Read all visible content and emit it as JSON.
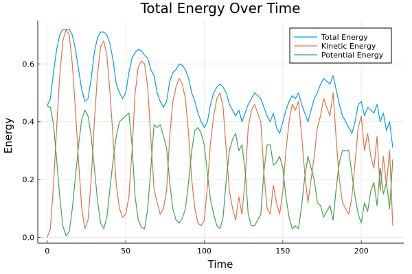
{
  "chart_data": {
    "type": "line",
    "title": "Total Energy Over Time",
    "xlabel": "Time",
    "ylabel": "Energy",
    "xlim": [
      -6,
      227
    ],
    "ylim": [
      -0.02,
      0.75
    ],
    "xticks": [
      0,
      50,
      100,
      150,
      200
    ],
    "xtick_labels": [
      "0",
      "50",
      "100",
      "150",
      "200"
    ],
    "yticks": [
      0.0,
      0.2,
      0.4,
      0.6
    ],
    "ytick_labels": [
      "0.0",
      "0.2",
      "0.4",
      "0.6"
    ],
    "grid": true,
    "legend_position": "top-right",
    "x": [
      0,
      2,
      4,
      6,
      8,
      10,
      12,
      14,
      16,
      18,
      20,
      22,
      24,
      26,
      28,
      30,
      32,
      34,
      36,
      38,
      40,
      42,
      44,
      46,
      48,
      50,
      52,
      54,
      56,
      58,
      60,
      62,
      64,
      66,
      68,
      70,
      72,
      74,
      76,
      78,
      80,
      82,
      84,
      86,
      88,
      90,
      92,
      94,
      96,
      98,
      100,
      102,
      104,
      106,
      108,
      110,
      112,
      114,
      116,
      118,
      120,
      122,
      124,
      126,
      128,
      130,
      132,
      134,
      136,
      138,
      140,
      142,
      144,
      146,
      148,
      150,
      152,
      154,
      156,
      158,
      160,
      162,
      164,
      166,
      168,
      170,
      172,
      174,
      176,
      178,
      180,
      182,
      184,
      186,
      188,
      190,
      192,
      194,
      196,
      198,
      200,
      202,
      204,
      206,
      208,
      210,
      212,
      214,
      216,
      218,
      220
    ],
    "series": [
      {
        "name": "Total Energy",
        "color": "#009af9",
        "values": [
          0.455,
          0.48,
          0.57,
          0.65,
          0.7,
          0.72,
          0.72,
          0.72,
          0.7,
          0.65,
          0.58,
          0.51,
          0.47,
          0.48,
          0.55,
          0.64,
          0.69,
          0.71,
          0.71,
          0.7,
          0.67,
          0.61,
          0.53,
          0.5,
          0.48,
          0.5,
          0.57,
          0.62,
          0.64,
          0.65,
          0.645,
          0.63,
          0.62,
          0.58,
          0.56,
          0.5,
          0.47,
          0.45,
          0.47,
          0.54,
          0.57,
          0.58,
          0.6,
          0.595,
          0.58,
          0.55,
          0.5,
          0.47,
          0.43,
          0.4,
          0.38,
          0.4,
          0.46,
          0.5,
          0.52,
          0.53,
          0.52,
          0.5,
          0.46,
          0.44,
          0.42,
          0.44,
          0.4,
          0.43,
          0.46,
          0.48,
          0.5,
          0.49,
          0.48,
          0.45,
          0.42,
          0.4,
          0.43,
          0.38,
          0.36,
          0.4,
          0.44,
          0.47,
          0.49,
          0.48,
          0.5,
          0.46,
          0.43,
          0.4,
          0.44,
          0.48,
          0.5,
          0.53,
          0.55,
          0.54,
          0.53,
          0.56,
          0.51,
          0.46,
          0.42,
          0.4,
          0.38,
          0.36,
          0.4,
          0.46,
          0.47,
          0.42,
          0.45,
          0.44,
          0.43,
          0.46,
          0.4,
          0.43,
          0.37,
          0.4,
          0.31
        ]
      },
      {
        "name": "Kinetic Energy",
        "color": "#e26f46",
        "values": [
          0.0,
          0.03,
          0.18,
          0.38,
          0.56,
          0.68,
          0.72,
          0.7,
          0.6,
          0.44,
          0.26,
          0.1,
          0.03,
          0.06,
          0.2,
          0.4,
          0.56,
          0.66,
          0.68,
          0.63,
          0.5,
          0.34,
          0.18,
          0.1,
          0.07,
          0.08,
          0.14,
          0.3,
          0.5,
          0.59,
          0.61,
          0.6,
          0.52,
          0.34,
          0.17,
          0.12,
          0.08,
          0.1,
          0.16,
          0.35,
          0.47,
          0.52,
          0.55,
          0.53,
          0.48,
          0.36,
          0.2,
          0.1,
          0.05,
          0.04,
          0.06,
          0.18,
          0.33,
          0.42,
          0.48,
          0.5,
          0.45,
          0.3,
          0.16,
          0.1,
          0.06,
          0.14,
          0.08,
          0.2,
          0.38,
          0.44,
          0.46,
          0.43,
          0.4,
          0.22,
          0.1,
          0.08,
          0.18,
          0.12,
          0.08,
          0.16,
          0.3,
          0.4,
          0.46,
          0.44,
          0.47,
          0.35,
          0.22,
          0.12,
          0.2,
          0.28,
          0.38,
          0.42,
          0.48,
          0.45,
          0.42,
          0.5,
          0.34,
          0.2,
          0.12,
          0.1,
          0.08,
          0.14,
          0.26,
          0.38,
          0.42,
          0.3,
          0.36,
          0.28,
          0.24,
          0.35,
          0.16,
          0.28,
          0.18,
          0.3,
          0.04
        ]
      },
      {
        "name": "Potential Energy",
        "color": "#3da44d",
        "values": [
          0.455,
          0.45,
          0.39,
          0.27,
          0.14,
          0.04,
          0.005,
          0.02,
          0.1,
          0.21,
          0.32,
          0.41,
          0.44,
          0.42,
          0.35,
          0.24,
          0.13,
          0.05,
          0.03,
          0.07,
          0.17,
          0.27,
          0.35,
          0.4,
          0.41,
          0.42,
          0.43,
          0.32,
          0.14,
          0.06,
          0.035,
          0.03,
          0.1,
          0.24,
          0.39,
          0.38,
          0.39,
          0.35,
          0.31,
          0.19,
          0.1,
          0.06,
          0.05,
          0.065,
          0.1,
          0.19,
          0.3,
          0.37,
          0.38,
          0.36,
          0.32,
          0.22,
          0.13,
          0.08,
          0.04,
          0.03,
          0.07,
          0.2,
          0.3,
          0.34,
          0.36,
          0.3,
          0.32,
          0.23,
          0.08,
          0.04,
          0.04,
          0.06,
          0.08,
          0.23,
          0.32,
          0.32,
          0.25,
          0.26,
          0.28,
          0.24,
          0.14,
          0.07,
          0.03,
          0.04,
          0.03,
          0.11,
          0.21,
          0.28,
          0.24,
          0.2,
          0.12,
          0.11,
          0.07,
          0.09,
          0.11,
          0.06,
          0.17,
          0.26,
          0.3,
          0.3,
          0.3,
          0.22,
          0.14,
          0.08,
          0.05,
          0.12,
          0.09,
          0.16,
          0.19,
          0.11,
          0.24,
          0.15,
          0.19,
          0.1,
          0.27
        ]
      }
    ]
  }
}
